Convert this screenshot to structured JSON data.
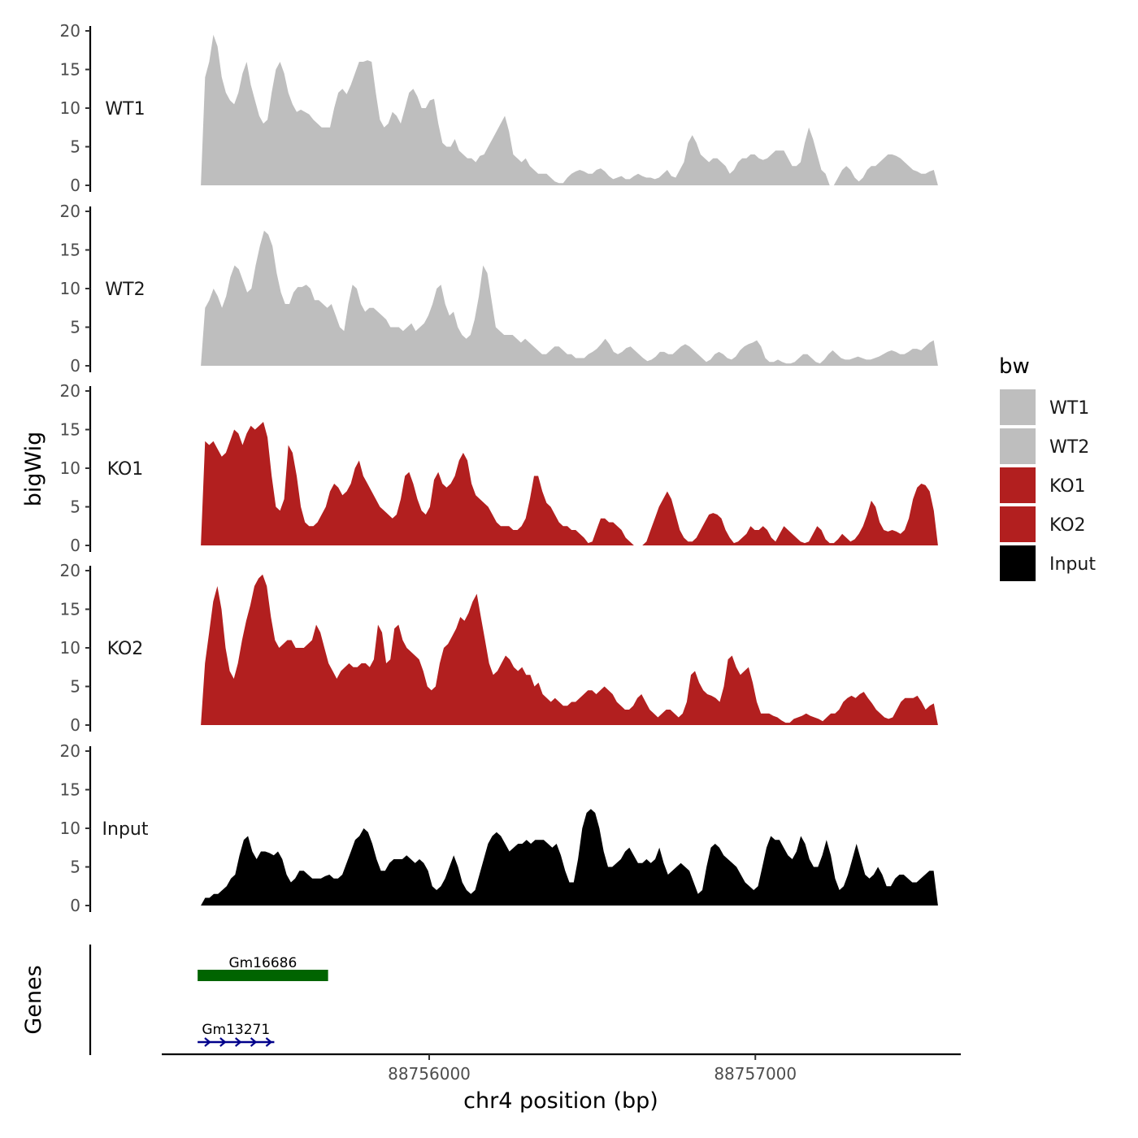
{
  "chart_data": {
    "type": "area",
    "ylabel": "bigWig",
    "xlabel": "chr4 position (bp)",
    "xlim": [
      88755180,
      88757630
    ],
    "x_ticks": [
      88756000,
      88757000
    ],
    "x_tick_labels": [
      "88756000",
      "88757000"
    ],
    "ylim": [
      0,
      20
    ],
    "y_ticks": [
      0,
      5,
      10,
      15,
      20
    ],
    "y_tick_labels": [
      "0",
      "5",
      "10",
      "15",
      "20"
    ],
    "legend_title": "bw",
    "legend_position": "right",
    "grid": false,
    "tracks": [
      {
        "name": "WT1",
        "color": "#bebebe",
        "x_start": 88755300,
        "x_end": 88757560,
        "values": [
          0,
          14,
          16,
          19.5,
          18,
          14,
          12,
          11,
          10.5,
          12,
          14.5,
          16,
          13,
          11,
          9,
          8,
          8.5,
          12,
          15,
          16,
          14.5,
          12,
          10.5,
          9.5,
          9.8,
          9.5,
          9.2,
          8.5,
          8,
          7.5,
          7.5,
          7.5,
          10,
          12,
          12.5,
          11.8,
          13,
          14.5,
          16,
          16,
          16.2,
          16,
          12,
          8.5,
          7.5,
          8,
          9.5,
          9,
          8,
          10,
          12,
          12.5,
          11.5,
          10,
          10,
          11,
          11.2,
          8,
          5.5,
          5,
          5,
          6,
          4.5,
          4,
          3.5,
          3.5,
          3,
          3.8,
          4,
          5,
          6,
          7,
          8,
          9,
          7,
          4,
          3.5,
          3,
          3.5,
          2.5,
          2,
          1.5,
          1.5,
          1.5,
          1,
          0.5,
          0.3,
          0.3,
          1,
          1.5,
          1.8,
          2,
          1.8,
          1.5,
          1.5,
          2,
          2.2,
          1.8,
          1.2,
          0.8,
          1,
          1.2,
          0.8,
          0.8,
          1.2,
          1.5,
          1.2,
          1,
          1,
          0.8,
          1,
          1.5,
          2,
          1.2,
          1,
          2,
          3,
          5.5,
          6.5,
          5.5,
          4,
          3.5,
          3,
          3.5,
          3.5,
          3,
          2.5,
          1.5,
          2,
          3,
          3.5,
          3.5,
          4,
          4,
          3.5,
          3.3,
          3.5,
          4,
          4.5,
          4.5,
          4.5,
          3.5,
          2.5,
          2.5,
          3,
          5.5,
          7.5,
          6,
          4,
          2,
          1.5,
          0,
          0,
          1,
          2,
          2.5,
          2,
          1,
          0.5,
          1,
          2,
          2.5,
          2.5,
          3,
          3.5,
          4,
          4,
          3.8,
          3.5,
          3,
          2.5,
          2,
          1.8,
          1.5,
          1.5,
          1.8,
          2,
          0
        ]
      },
      {
        "name": "WT2",
        "color": "#bebebe",
        "x_start": 88755300,
        "x_end": 88757560,
        "values": [
          0,
          7.5,
          8.5,
          10,
          9,
          7.5,
          9,
          11.5,
          13,
          12.5,
          11,
          9.5,
          10,
          13,
          15.5,
          17.5,
          17,
          15.5,
          12,
          9.5,
          8,
          8,
          9.5,
          10.2,
          10.2,
          10.5,
          10,
          8.5,
          8.5,
          8,
          7.5,
          8,
          6.5,
          5,
          4.5,
          8,
          10.5,
          10,
          8,
          7,
          7.5,
          7.5,
          7,
          6.5,
          6,
          5,
          5,
          5,
          4.5,
          5,
          5.5,
          4.5,
          5,
          5.5,
          6.5,
          8,
          10,
          10.5,
          8,
          6.5,
          7,
          5,
          4,
          3.5,
          4,
          6,
          9,
          13,
          12,
          8.5,
          5,
          4.5,
          4,
          4,
          4,
          3.5,
          3,
          3.5,
          3,
          2.5,
          2,
          1.5,
          1.5,
          2,
          2.5,
          2.5,
          2,
          1.5,
          1.5,
          1,
          1,
          1,
          1.5,
          1.8,
          2.2,
          2.8,
          3.5,
          2.8,
          1.8,
          1.5,
          1.8,
          2.3,
          2.5,
          2,
          1.5,
          1,
          0.6,
          0.8,
          1.2,
          1.8,
          1.8,
          1.5,
          1.5,
          2,
          2.5,
          2.8,
          2.5,
          2,
          1.5,
          1,
          0.5,
          0.8,
          1.5,
          1.8,
          1.5,
          1,
          0.8,
          1.2,
          2,
          2.5,
          2.8,
          3,
          3.3,
          2.5,
          1,
          0.5,
          0.5,
          0.8,
          0.5,
          0.3,
          0.3,
          0.5,
          1,
          1.5,
          1.5,
          1,
          0.5,
          0.3,
          0.8,
          1.5,
          2,
          1.5,
          1,
          0.8,
          0.8,
          1,
          1.2,
          1,
          0.8,
          0.8,
          1,
          1.2,
          1.5,
          1.8,
          2,
          1.8,
          1.5,
          1.5,
          1.8,
          2.2,
          2.2,
          2,
          2.5,
          3,
          3.3,
          0
        ]
      },
      {
        "name": "KO1",
        "color": "#b21f1f",
        "x_start": 88755300,
        "x_end": 88757560,
        "values": [
          0,
          13.5,
          13,
          13.5,
          12.5,
          11.5,
          12,
          13.5,
          15,
          14.5,
          13,
          14.5,
          15.5,
          15,
          15.5,
          16,
          14,
          9,
          5,
          4.5,
          6,
          13,
          12,
          9,
          5,
          3,
          2.5,
          2.5,
          3,
          4,
          5,
          7,
          8,
          7.5,
          6.5,
          7,
          8,
          10,
          11,
          9,
          8,
          7,
          6,
          5,
          4.5,
          4,
          3.5,
          4,
          6,
          9,
          9.5,
          8,
          6,
          4.5,
          4,
          5,
          8.5,
          9.5,
          8,
          7.5,
          8,
          9,
          11,
          12,
          11,
          8,
          6.5,
          6,
          5.5,
          5,
          4,
          3,
          2.5,
          2.5,
          2.5,
          2,
          2,
          2.5,
          3.5,
          6,
          9,
          9,
          7,
          5.5,
          5,
          4,
          3,
          2.5,
          2.5,
          2,
          2,
          1.5,
          1,
          0.3,
          0.5,
          2,
          3.5,
          3.5,
          3,
          3,
          2.5,
          2,
          1,
          0.5,
          0,
          0,
          0,
          0.5,
          2,
          3.5,
          5,
          6,
          7,
          6,
          4,
          2,
          1,
          0.5,
          0.5,
          1,
          2,
          3,
          4,
          4.2,
          4,
          3.5,
          2,
          1,
          0.3,
          0.5,
          1,
          1.5,
          2.5,
          2,
          2,
          2.5,
          2,
          1,
          0.5,
          1.5,
          2.5,
          2,
          1.5,
          1,
          0.5,
          0.3,
          0.5,
          1.5,
          2.5,
          2,
          0.8,
          0.3,
          0.3,
          0.8,
          1.5,
          1,
          0.5,
          0.8,
          1.5,
          2.5,
          4,
          5.8,
          5,
          3,
          2,
          1.8,
          2,
          1.8,
          1.5,
          2,
          3.5,
          6,
          7.5,
          8,
          7.8,
          7,
          4.5,
          0
        ]
      },
      {
        "name": "KO2",
        "color": "#b21f1f",
        "x_start": 88755300,
        "x_end": 88757560,
        "values": [
          0,
          8,
          12,
          16,
          18,
          15,
          10,
          7,
          6,
          8,
          11,
          13.5,
          15.5,
          18,
          19,
          19.5,
          18,
          14,
          11,
          10,
          10.5,
          11,
          11,
          10,
          10,
          10,
          10.5,
          11,
          13,
          12,
          10,
          8,
          7,
          6,
          7,
          7.5,
          8,
          7.5,
          7.5,
          8,
          8,
          7.5,
          8.5,
          13,
          12,
          8,
          8.5,
          12.5,
          13,
          11,
          10,
          9.5,
          9,
          8.5,
          7,
          5,
          4.5,
          5,
          8,
          10,
          10.5,
          11.5,
          12.5,
          14,
          13.5,
          14.5,
          16,
          17,
          14,
          11,
          8,
          6.5,
          7,
          8,
          9,
          8.5,
          7.5,
          7,
          7.5,
          6.5,
          6.5,
          5,
          5.5,
          4,
          3.5,
          3,
          3.5,
          3,
          2.5,
          2.5,
          3,
          3,
          3.5,
          4,
          4.5,
          4.5,
          4,
          4.5,
          5,
          4.5,
          4,
          3,
          2.5,
          2,
          2,
          2.5,
          3.5,
          4,
          3,
          2,
          1.5,
          1,
          1.5,
          2,
          2,
          1.5,
          1,
          1.5,
          3,
          6.5,
          7,
          5.5,
          4.5,
          4,
          3.8,
          3.5,
          3,
          5,
          8.5,
          9,
          7.5,
          6.5,
          7,
          7.5,
          5.5,
          3,
          1.5,
          1.5,
          1.5,
          1.2,
          1,
          0.6,
          0.3,
          0.3,
          0.8,
          1,
          1.2,
          1.5,
          1.2,
          1,
          0.8,
          0.5,
          1,
          1.5,
          1.5,
          2,
          3,
          3.5,
          3.8,
          3.5,
          4,
          4.3,
          3.5,
          2.8,
          2,
          1.5,
          1,
          0.8,
          1,
          2,
          3,
          3.5,
          3.5,
          3.5,
          3.8,
          3,
          2,
          2.5,
          2.8,
          0
        ]
      },
      {
        "name": "Input",
        "color": "#000000",
        "x_start": 88755300,
        "x_end": 88757560,
        "values": [
          0,
          1,
          1,
          1.5,
          1.5,
          2,
          2.5,
          3.5,
          4,
          6.5,
          8.5,
          9,
          7,
          6,
          7,
          7,
          6.8,
          6.5,
          7,
          6,
          4,
          3,
          3.5,
          4.5,
          4.5,
          4,
          3.5,
          3.5,
          3.5,
          3.8,
          4,
          3.5,
          3.5,
          4,
          5.5,
          7,
          8.5,
          9,
          10,
          9.5,
          8,
          6,
          4.5,
          4.5,
          5.5,
          6,
          6,
          6,
          6.5,
          6,
          5.5,
          6,
          5.5,
          4.5,
          2.5,
          2,
          2.5,
          3.5,
          5,
          6.5,
          5,
          3,
          2,
          1.5,
          2,
          4,
          6,
          8,
          9,
          9.5,
          9,
          8,
          7,
          7.5,
          8,
          8,
          8.5,
          8,
          8.5,
          8.5,
          8.5,
          8,
          7.5,
          8,
          6.5,
          4.5,
          3,
          3,
          6,
          10,
          12,
          12.5,
          12,
          10,
          7,
          5,
          5,
          5.5,
          6,
          7,
          7.5,
          6.5,
          5.5,
          5.5,
          6,
          5.5,
          6,
          7.5,
          5.5,
          4,
          4.5,
          5,
          5.5,
          5,
          4.5,
          3,
          1.5,
          2,
          5,
          7.5,
          8,
          7.5,
          6.5,
          6,
          5.5,
          5,
          4,
          3,
          2.5,
          2,
          2.5,
          5,
          7.5,
          9,
          8.5,
          8.5,
          7.5,
          6.5,
          6,
          7,
          9,
          8,
          6,
          5,
          5,
          6.5,
          8.5,
          6.5,
          3.5,
          2,
          2.5,
          4,
          6,
          8,
          6,
          4,
          3.5,
          4,
          5,
          4,
          2.5,
          2.5,
          3.5,
          4,
          4,
          3.5,
          3,
          3,
          3.5,
          4,
          4.5,
          4.5,
          0
        ]
      }
    ],
    "genes": [
      {
        "name": "Gm16686",
        "start": 88755290,
        "end": 88755690,
        "strand": "none",
        "color": "#006400",
        "row": 1
      },
      {
        "name": "Gm13271",
        "start": 88755290,
        "end": 88755525,
        "strand": "+",
        "color": "#00008b",
        "row": 2
      }
    ],
    "gene_panel_label": "Genes"
  }
}
